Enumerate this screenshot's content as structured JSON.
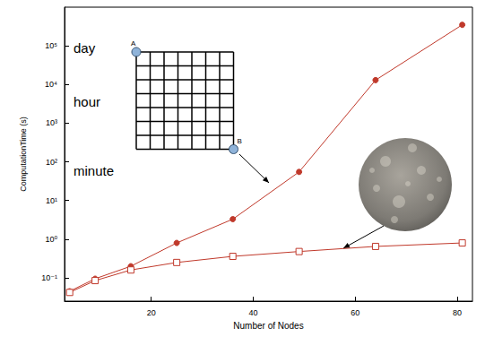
{
  "chart_data": {
    "type": "line",
    "x_label": "Number of Nodes",
    "y_label": "ComputationTime (s)",
    "log": "y",
    "grid": false,
    "xlim": [
      3,
      83
    ],
    "xticks": [
      20,
      40,
      60,
      80
    ],
    "ylim": [
      0.025,
      1000000
    ],
    "yticks": [
      {
        "value": 0.1,
        "label": "10⁻¹"
      },
      {
        "value": 1,
        "label": "10⁰"
      },
      {
        "value": 10,
        "label": "10¹"
      },
      {
        "value": 100,
        "label": "10²"
      },
      {
        "value": 1000,
        "label": "10³"
      },
      {
        "value": 10000,
        "label": "10⁴"
      },
      {
        "value": 100000,
        "label": "10⁵"
      }
    ],
    "series": [
      {
        "color": "#c0392b",
        "marker": "circle",
        "x": [
          4,
          9,
          16,
          25,
          36,
          49,
          64,
          81
        ],
        "values": [
          0.045,
          0.095,
          0.2,
          0.8,
          3.3,
          55,
          13000,
          350000
        ]
      },
      {
        "color": "#c0392b",
        "marker": "open-square",
        "x": [
          4,
          9,
          16,
          25,
          36,
          49,
          64,
          81
        ],
        "values": [
          0.042,
          0.085,
          0.16,
          0.25,
          0.36,
          0.48,
          0.65,
          0.8
        ]
      }
    ],
    "annotations": [
      {
        "text": "day",
        "y": 86400
      },
      {
        "text": "hour",
        "y": 3600
      },
      {
        "text": "minute",
        "y": 60
      }
    ],
    "inset_labels": [
      "A",
      "B"
    ]
  }
}
